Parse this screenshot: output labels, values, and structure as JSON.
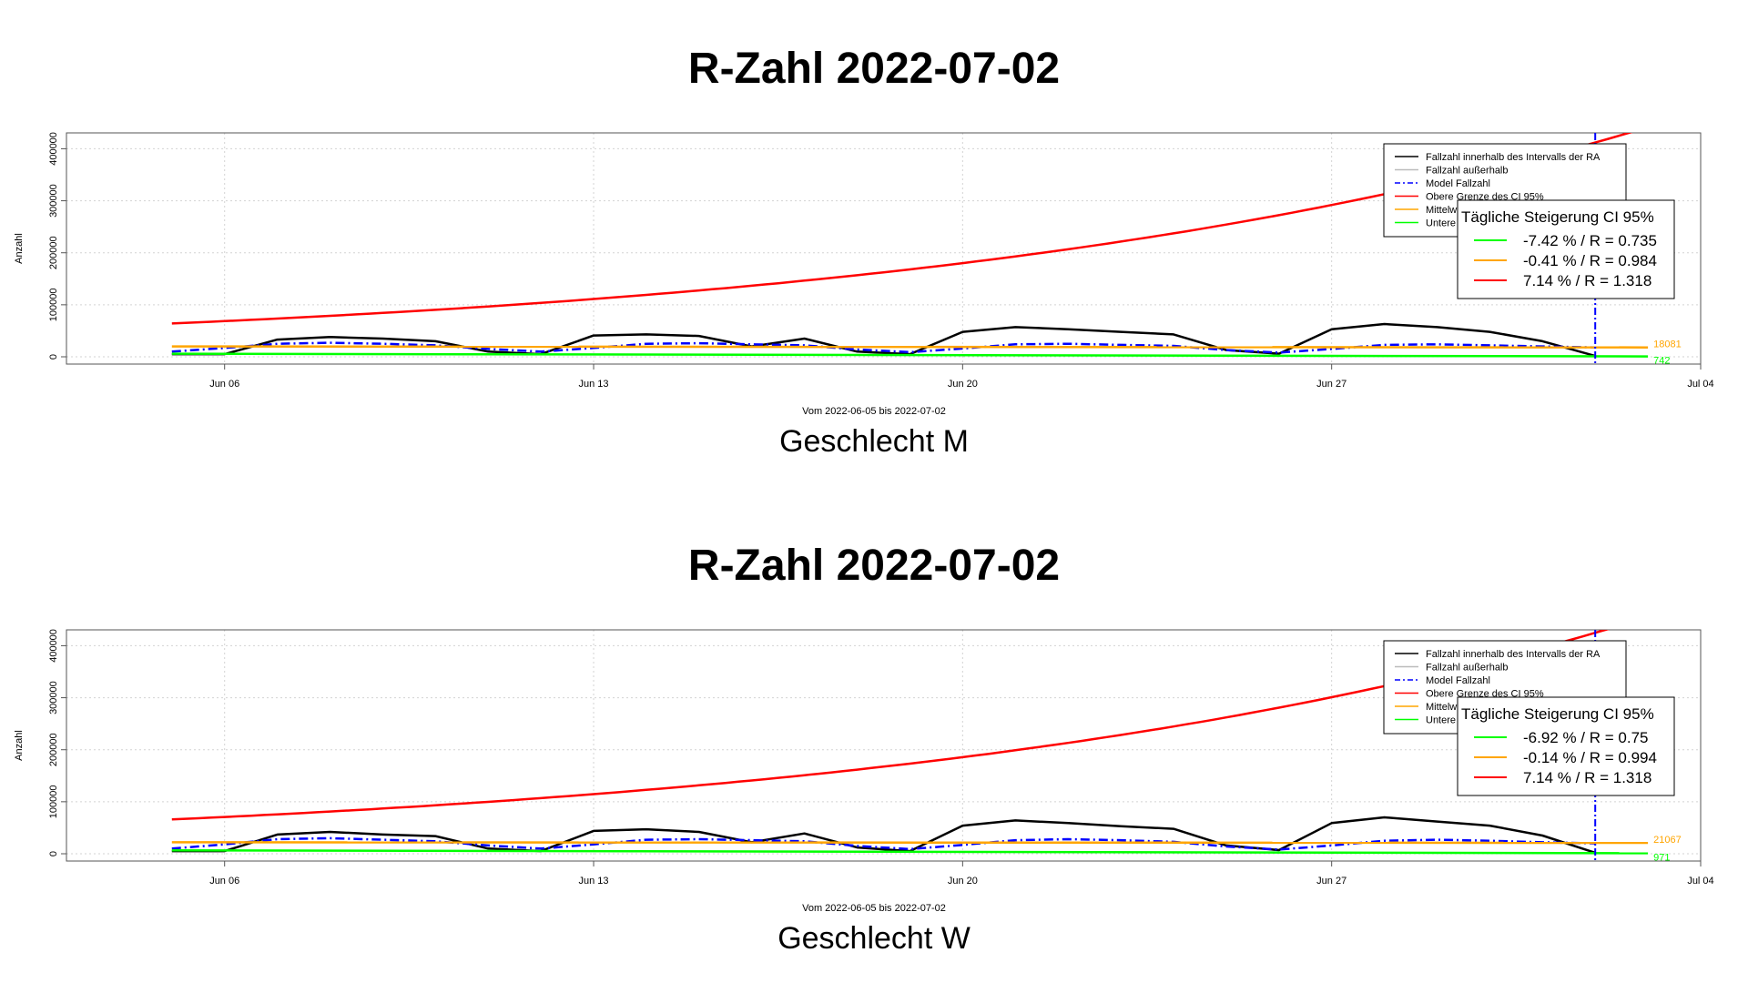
{
  "chart_data": [
    {
      "type": "line",
      "title": "R-Zahl 2022-07-02",
      "subtitle": "Geschlecht M",
      "xlabel": "Vom 2022-06-05 bis 2022-07-02",
      "ylabel": "Anzahl",
      "x_range": [
        "2022-06-03",
        "2022-07-04"
      ],
      "ylim": [
        0,
        420000
      ],
      "x_ticks": [
        {
          "date": "2022-06-06",
          "label": "Jun 06"
        },
        {
          "date": "2022-06-13",
          "label": "Jun 13"
        },
        {
          "date": "2022-06-20",
          "label": "Jun 20"
        },
        {
          "date": "2022-06-27",
          "label": "Jun 27"
        },
        {
          "date": "2022-07-04",
          "label": "Jul 04"
        }
      ],
      "y_ticks": [
        0,
        100000,
        200000,
        300000,
        400000
      ],
      "grid": true,
      "legend_position": "top-right",
      "legend": [
        {
          "label": "Fallzahl innerhalb des Intervalls der RA",
          "color": "#000000",
          "style": "solid"
        },
        {
          "label": "Fallzahl außerhalb",
          "color": "#bbbbbb",
          "style": "solid"
        },
        {
          "label": "Model Fallzahl",
          "color": "#0000ff",
          "style": "dashdot"
        },
        {
          "label": "Obere Grenze des CI 95%",
          "color": "#ff0000",
          "style": "solid"
        },
        {
          "label": "Mittelwert",
          "color": "#ffa500",
          "style": "solid"
        },
        {
          "label": "Untere",
          "color": "#00ff00",
          "style": "solid"
        }
      ],
      "ci_box": {
        "title": "Tägliche Steigerung CI  95%",
        "rows": [
          {
            "text": "-7.42 % / R = 0.735",
            "color": "#00ff00"
          },
          {
            "text": "-0.41 % / R = 0.984",
            "color": "#ffa500"
          },
          {
            "text": "7.14 % / R = 1.318",
            "color": "#ff0000"
          }
        ]
      },
      "series": [
        {
          "name": "Fallzahl innerhalb des Intervalls der RA",
          "color": "#000000",
          "x": [
            "2022-06-05",
            "2022-06-06",
            "2022-06-07",
            "2022-06-08",
            "2022-06-09",
            "2022-06-10",
            "2022-06-11",
            "2022-06-12",
            "2022-06-13",
            "2022-06-14",
            "2022-06-15",
            "2022-06-16",
            "2022-06-17",
            "2022-06-18",
            "2022-06-19",
            "2022-06-20",
            "2022-06-21",
            "2022-06-22",
            "2022-06-23",
            "2022-06-24",
            "2022-06-25",
            "2022-06-26",
            "2022-06-27",
            "2022-06-28",
            "2022-06-29",
            "2022-06-30",
            "2022-07-01",
            "2022-07-02"
          ],
          "values": [
            5000,
            5000,
            33000,
            38000,
            35000,
            30000,
            10000,
            5000,
            41000,
            43000,
            40000,
            20000,
            35000,
            10000,
            5000,
            48000,
            57000,
            53000,
            48000,
            43000,
            13000,
            6000,
            53000,
            63000,
            57000,
            48000,
            30000,
            1500
          ]
        },
        {
          "name": "Model Fallzahl",
          "color": "#0000ff",
          "x": [
            "2022-06-05",
            "2022-06-06",
            "2022-06-07",
            "2022-06-08",
            "2022-06-09",
            "2022-06-10",
            "2022-06-11",
            "2022-06-12",
            "2022-06-13",
            "2022-06-14",
            "2022-06-15",
            "2022-06-16",
            "2022-06-17",
            "2022-06-18",
            "2022-06-19",
            "2022-06-20",
            "2022-06-21",
            "2022-06-22",
            "2022-06-23",
            "2022-06-24",
            "2022-06-25",
            "2022-06-26",
            "2022-06-27",
            "2022-06-28",
            "2022-06-29",
            "2022-06-30",
            "2022-07-01",
            "2022-07-02"
          ],
          "values": [
            10000,
            17000,
            25000,
            27000,
            25000,
            22000,
            15000,
            10000,
            17000,
            25000,
            26000,
            24000,
            22000,
            14000,
            9000,
            16000,
            24000,
            25000,
            23000,
            21000,
            13000,
            8000,
            15000,
            23000,
            24000,
            22000,
            20000,
            18000
          ]
        },
        {
          "name": "Obere Grenze des CI 95%",
          "color": "#ff0000",
          "x_start": "2022-06-05",
          "x_end": "2022-07-03",
          "start_value": 64000,
          "daily_growth_pct": 7.14
        },
        {
          "name": "Mittelwert",
          "color": "#ffa500",
          "x_start": "2022-06-05",
          "x_end": "2022-07-03",
          "values": [
            20000,
            18081
          ]
        },
        {
          "name": "Untere",
          "color": "#00ff00",
          "x_start": "2022-06-05",
          "x_end": "2022-07-03",
          "values": [
            6000,
            742
          ]
        }
      ],
      "right_labels": [
        {
          "text": "18081",
          "color": "#ffa500",
          "value": 18081
        },
        {
          "text": "742",
          "color": "#00ff00",
          "value": 742
        }
      ],
      "vline": {
        "date": "2022-07-02",
        "color": "#0000ff"
      }
    },
    {
      "type": "line",
      "title": "R-Zahl 2022-07-02",
      "subtitle": "Geschlecht W",
      "xlabel": "Vom 2022-06-05 bis 2022-07-02",
      "ylabel": "Anzahl",
      "x_range": [
        "2022-06-03",
        "2022-07-04"
      ],
      "ylim": [
        0,
        420000
      ],
      "x_ticks": [
        {
          "date": "2022-06-06",
          "label": "Jun 06"
        },
        {
          "date": "2022-06-13",
          "label": "Jun 13"
        },
        {
          "date": "2022-06-20",
          "label": "Jun 20"
        },
        {
          "date": "2022-06-27",
          "label": "Jun 27"
        },
        {
          "date": "2022-07-04",
          "label": "Jul 04"
        }
      ],
      "y_ticks": [
        0,
        100000,
        200000,
        300000,
        400000
      ],
      "grid": true,
      "legend_position": "top-right",
      "legend": [
        {
          "label": "Fallzahl innerhalb des Intervalls der RA",
          "color": "#000000",
          "style": "solid"
        },
        {
          "label": "Fallzahl außerhalb",
          "color": "#bbbbbb",
          "style": "solid"
        },
        {
          "label": "Model Fallzahl",
          "color": "#0000ff",
          "style": "dashdot"
        },
        {
          "label": "Obere Grenze des CI 95%",
          "color": "#ff0000",
          "style": "solid"
        },
        {
          "label": "Mittelwert",
          "color": "#ffa500",
          "style": "solid"
        },
        {
          "label": "Untere",
          "color": "#00ff00",
          "style": "solid"
        }
      ],
      "ci_box": {
        "title": "Tägliche Steigerung CI  95%",
        "rows": [
          {
            "text": "-6.92 % / R = 0.75",
            "color": "#00ff00"
          },
          {
            "text": "-0.14 % / R = 0.994",
            "color": "#ffa500"
          },
          {
            "text": "7.14 % / R = 1.318",
            "color": "#ff0000"
          }
        ]
      },
      "series": [
        {
          "name": "Fallzahl innerhalb des Intervalls der RA",
          "color": "#000000",
          "x": [
            "2022-06-05",
            "2022-06-06",
            "2022-06-07",
            "2022-06-08",
            "2022-06-09",
            "2022-06-10",
            "2022-06-11",
            "2022-06-12",
            "2022-06-13",
            "2022-06-14",
            "2022-06-15",
            "2022-06-16",
            "2022-06-17",
            "2022-06-18",
            "2022-06-19",
            "2022-06-20",
            "2022-06-21",
            "2022-06-22",
            "2022-06-23",
            "2022-06-24",
            "2022-06-25",
            "2022-06-26",
            "2022-06-27",
            "2022-06-28",
            "2022-06-29",
            "2022-06-30",
            "2022-07-01",
            "2022-07-02"
          ],
          "values": [
            5000,
            5000,
            37000,
            42000,
            37000,
            34000,
            10000,
            5000,
            44000,
            47000,
            42000,
            22000,
            39000,
            12000,
            5000,
            54000,
            64000,
            59000,
            53000,
            48000,
            16000,
            7000,
            59000,
            70000,
            62000,
            54000,
            35000,
            2000
          ]
        },
        {
          "name": "Model Fallzahl",
          "color": "#0000ff",
          "x": [
            "2022-06-05",
            "2022-06-06",
            "2022-06-07",
            "2022-06-08",
            "2022-06-09",
            "2022-06-10",
            "2022-06-11",
            "2022-06-12",
            "2022-06-13",
            "2022-06-14",
            "2022-06-15",
            "2022-06-16",
            "2022-06-17",
            "2022-06-18",
            "2022-06-19",
            "2022-06-20",
            "2022-06-21",
            "2022-06-22",
            "2022-06-23",
            "2022-06-24",
            "2022-06-25",
            "2022-06-26",
            "2022-06-27",
            "2022-06-28",
            "2022-06-29",
            "2022-06-30",
            "2022-07-01",
            "2022-07-02"
          ],
          "values": [
            10000,
            18000,
            28000,
            30000,
            27000,
            24000,
            16000,
            10000,
            18000,
            27000,
            28000,
            26000,
            24000,
            15000,
            9000,
            17000,
            26000,
            28000,
            26000,
            23000,
            14000,
            8000,
            16000,
            25000,
            27000,
            25000,
            22000,
            20000
          ]
        },
        {
          "name": "Obere Grenze des CI 95%",
          "color": "#ff0000",
          "x_start": "2022-06-05",
          "x_end": "2022-07-03",
          "start_value": 66000,
          "daily_growth_pct": 7.14
        },
        {
          "name": "Mittelwert",
          "color": "#ffa500",
          "x_start": "2022-06-05",
          "x_end": "2022-07-03",
          "values": [
            22000,
            21067
          ]
        },
        {
          "name": "Untere",
          "color": "#00ff00",
          "x_start": "2022-06-05",
          "x_end": "2022-07-03",
          "values": [
            6500,
            971
          ]
        }
      ],
      "right_labels": [
        {
          "text": "21067",
          "color": "#ffa500",
          "value": 21067
        },
        {
          "text": "971",
          "color": "#00ff00",
          "value": 971
        }
      ],
      "vline": {
        "date": "2022-07-02",
        "color": "#0000ff"
      }
    }
  ]
}
